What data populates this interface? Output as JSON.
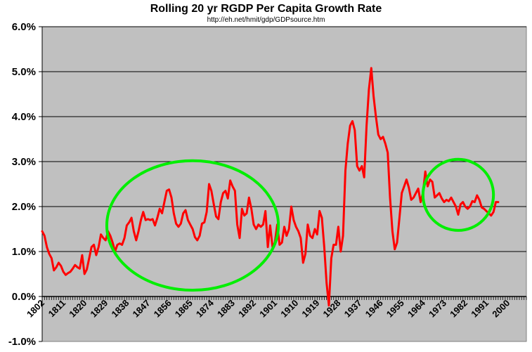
{
  "chart_data": {
    "type": "line",
    "title": "Rolling 20 yr RGDP Per Capita Growth Rate",
    "subtitle": "http://eh.net/hmit/gdp/GDPsource.htm",
    "xlabel": "",
    "ylabel": "",
    "xlim": [
      1802,
      2008
    ],
    "ylim": [
      -1.0,
      6.0
    ],
    "y_ticks": [
      "6.0%",
      "5.0%",
      "4.0%",
      "3.0%",
      "2.0%",
      "1.0%",
      "0.0%",
      "-1.0%"
    ],
    "y_tick_values": [
      6.0,
      5.0,
      4.0,
      3.0,
      2.0,
      1.0,
      0.0,
      -1.0
    ],
    "x_ticks": [
      "1802",
      "1811",
      "1820",
      "1829",
      "1838",
      "1847",
      "1856",
      "1865",
      "1874",
      "1883",
      "1892",
      "1901",
      "1910",
      "1919",
      "1928",
      "1937",
      "1946",
      "1955",
      "1964",
      "1973",
      "1982",
      "1991",
      "2000"
    ],
    "x_tick_values": [
      1802,
      1811,
      1820,
      1829,
      1838,
      1847,
      1856,
      1865,
      1874,
      1883,
      1892,
      1901,
      1910,
      1919,
      1928,
      1937,
      1946,
      1955,
      1964,
      1973,
      1982,
      1991,
      2000
    ],
    "grid": "horizontal",
    "series": [
      {
        "color": "#ff0000",
        "points": [
          [
            1802,
            1.45
          ],
          [
            1803,
            1.35
          ],
          [
            1804,
            1.1
          ],
          [
            1805,
            0.95
          ],
          [
            1806,
            0.85
          ],
          [
            1807,
            0.58
          ],
          [
            1808,
            0.65
          ],
          [
            1809,
            0.75
          ],
          [
            1810,
            0.68
          ],
          [
            1811,
            0.55
          ],
          [
            1812,
            0.48
          ],
          [
            1813,
            0.52
          ],
          [
            1814,
            0.55
          ],
          [
            1815,
            0.62
          ],
          [
            1816,
            0.7
          ],
          [
            1817,
            0.65
          ],
          [
            1818,
            0.62
          ],
          [
            1819,
            0.92
          ],
          [
            1820,
            0.5
          ],
          [
            1821,
            0.6
          ],
          [
            1822,
            0.85
          ],
          [
            1823,
            1.1
          ],
          [
            1824,
            1.15
          ],
          [
            1825,
            0.92
          ],
          [
            1826,
            1.1
          ],
          [
            1827,
            1.38
          ],
          [
            1828,
            1.3
          ],
          [
            1829,
            1.25
          ],
          [
            1830,
            1.45
          ],
          [
            1831,
            1.35
          ],
          [
            1832,
            1.2
          ],
          [
            1833,
            1.0
          ],
          [
            1834,
            1.15
          ],
          [
            1835,
            1.18
          ],
          [
            1836,
            1.15
          ],
          [
            1837,
            1.3
          ],
          [
            1838,
            1.58
          ],
          [
            1839,
            1.65
          ],
          [
            1840,
            1.75
          ],
          [
            1841,
            1.45
          ],
          [
            1842,
            1.25
          ],
          [
            1843,
            1.45
          ],
          [
            1844,
            1.7
          ],
          [
            1845,
            1.88
          ],
          [
            1846,
            1.7
          ],
          [
            1847,
            1.72
          ],
          [
            1848,
            1.7
          ],
          [
            1849,
            1.72
          ],
          [
            1850,
            1.58
          ],
          [
            1851,
            1.75
          ],
          [
            1852,
            1.95
          ],
          [
            1853,
            1.85
          ],
          [
            1854,
            2.1
          ],
          [
            1855,
            2.35
          ],
          [
            1856,
            2.38
          ],
          [
            1857,
            2.2
          ],
          [
            1858,
            1.85
          ],
          [
            1859,
            1.62
          ],
          [
            1860,
            1.55
          ],
          [
            1861,
            1.62
          ],
          [
            1862,
            1.85
          ],
          [
            1863,
            1.92
          ],
          [
            1864,
            1.7
          ],
          [
            1865,
            1.6
          ],
          [
            1866,
            1.5
          ],
          [
            1867,
            1.32
          ],
          [
            1868,
            1.25
          ],
          [
            1869,
            1.35
          ],
          [
            1870,
            1.62
          ],
          [
            1871,
            1.65
          ],
          [
            1872,
            1.88
          ],
          [
            1873,
            2.5
          ],
          [
            1874,
            2.35
          ],
          [
            1875,
            2.05
          ],
          [
            1876,
            1.78
          ],
          [
            1877,
            1.72
          ],
          [
            1878,
            2.1
          ],
          [
            1879,
            2.3
          ],
          [
            1880,
            2.35
          ],
          [
            1881,
            2.18
          ],
          [
            1882,
            2.58
          ],
          [
            1883,
            2.45
          ],
          [
            1884,
            2.35
          ],
          [
            1885,
            1.6
          ],
          [
            1886,
            1.3
          ],
          [
            1887,
            1.95
          ],
          [
            1888,
            1.8
          ],
          [
            1889,
            1.85
          ],
          [
            1890,
            2.2
          ],
          [
            1891,
            1.95
          ],
          [
            1892,
            1.6
          ],
          [
            1893,
            1.5
          ],
          [
            1894,
            1.6
          ],
          [
            1895,
            1.55
          ],
          [
            1896,
            1.6
          ],
          [
            1897,
            1.9
          ],
          [
            1898,
            1.1
          ],
          [
            1899,
            1.58
          ],
          [
            1900,
            1.1
          ],
          [
            1901,
            1.2
          ],
          [
            1902,
            1.6
          ],
          [
            1903,
            1.15
          ],
          [
            1904,
            1.2
          ],
          [
            1905,
            1.55
          ],
          [
            1906,
            1.35
          ],
          [
            1907,
            1.5
          ],
          [
            1908,
            2.0
          ],
          [
            1909,
            1.7
          ],
          [
            1910,
            1.55
          ],
          [
            1911,
            1.45
          ],
          [
            1912,
            1.3
          ],
          [
            1913,
            0.75
          ],
          [
            1914,
            0.95
          ],
          [
            1915,
            1.6
          ],
          [
            1916,
            1.35
          ],
          [
            1917,
            1.3
          ],
          [
            1918,
            1.5
          ],
          [
            1919,
            1.38
          ],
          [
            1920,
            1.9
          ],
          [
            1921,
            1.75
          ],
          [
            1922,
            1.1
          ],
          [
            1923,
            0.3
          ],
          [
            1924,
            -0.2
          ],
          [
            1925,
            0.85
          ],
          [
            1926,
            1.15
          ],
          [
            1927,
            1.15
          ],
          [
            1928,
            1.55
          ],
          [
            1929,
            1.0
          ],
          [
            1930,
            1.35
          ],
          [
            1931,
            2.8
          ],
          [
            1932,
            3.4
          ],
          [
            1933,
            3.8
          ],
          [
            1934,
            3.9
          ],
          [
            1935,
            3.7
          ],
          [
            1936,
            2.9
          ],
          [
            1937,
            2.8
          ],
          [
            1938,
            2.9
          ],
          [
            1939,
            2.65
          ],
          [
            1940,
            3.8
          ],
          [
            1941,
            4.6
          ],
          [
            1942,
            5.08
          ],
          [
            1943,
            4.45
          ],
          [
            1944,
            4.0
          ],
          [
            1945,
            3.6
          ],
          [
            1946,
            3.5
          ],
          [
            1947,
            3.55
          ],
          [
            1948,
            3.4
          ],
          [
            1949,
            3.2
          ],
          [
            1950,
            2.2
          ],
          [
            1951,
            1.45
          ],
          [
            1952,
            1.05
          ],
          [
            1953,
            1.2
          ],
          [
            1954,
            1.75
          ],
          [
            1955,
            2.3
          ],
          [
            1956,
            2.45
          ],
          [
            1957,
            2.6
          ],
          [
            1958,
            2.42
          ],
          [
            1959,
            2.15
          ],
          [
            1960,
            2.2
          ],
          [
            1961,
            2.3
          ],
          [
            1962,
            2.4
          ],
          [
            1963,
            2.1
          ],
          [
            1964,
            2.3
          ],
          [
            1965,
            2.78
          ],
          [
            1966,
            2.45
          ],
          [
            1967,
            2.6
          ],
          [
            1968,
            2.55
          ],
          [
            1969,
            2.2
          ],
          [
            1970,
            2.25
          ],
          [
            1971,
            2.3
          ],
          [
            1972,
            2.18
          ],
          [
            1973,
            2.1
          ],
          [
            1974,
            2.15
          ],
          [
            1975,
            2.12
          ],
          [
            1976,
            2.2
          ],
          [
            1977,
            2.1
          ],
          [
            1978,
            2.0
          ],
          [
            1979,
            1.82
          ],
          [
            1980,
            2.05
          ],
          [
            1981,
            2.1
          ],
          [
            1982,
            2.0
          ],
          [
            1983,
            1.95
          ],
          [
            1984,
            2.0
          ],
          [
            1985,
            2.12
          ],
          [
            1986,
            2.1
          ],
          [
            1987,
            2.25
          ],
          [
            1988,
            2.15
          ],
          [
            1989,
            1.98
          ],
          [
            1990,
            1.95
          ],
          [
            1991,
            1.9
          ],
          [
            1992,
            1.85
          ],
          [
            1993,
            1.8
          ],
          [
            1994,
            1.88
          ],
          [
            1995,
            2.1
          ],
          [
            1996,
            2.1
          ]
        ]
      }
    ],
    "annotations": [
      {
        "type": "ellipse",
        "color": "#00ee00",
        "cx": 1866,
        "cy": 1.58,
        "rx": 36.5,
        "ry": 1.44
      },
      {
        "type": "ellipse",
        "color": "#00ee00",
        "cx": 1979,
        "cy": 2.26,
        "rx": 15,
        "ry": 0.79
      }
    ]
  }
}
